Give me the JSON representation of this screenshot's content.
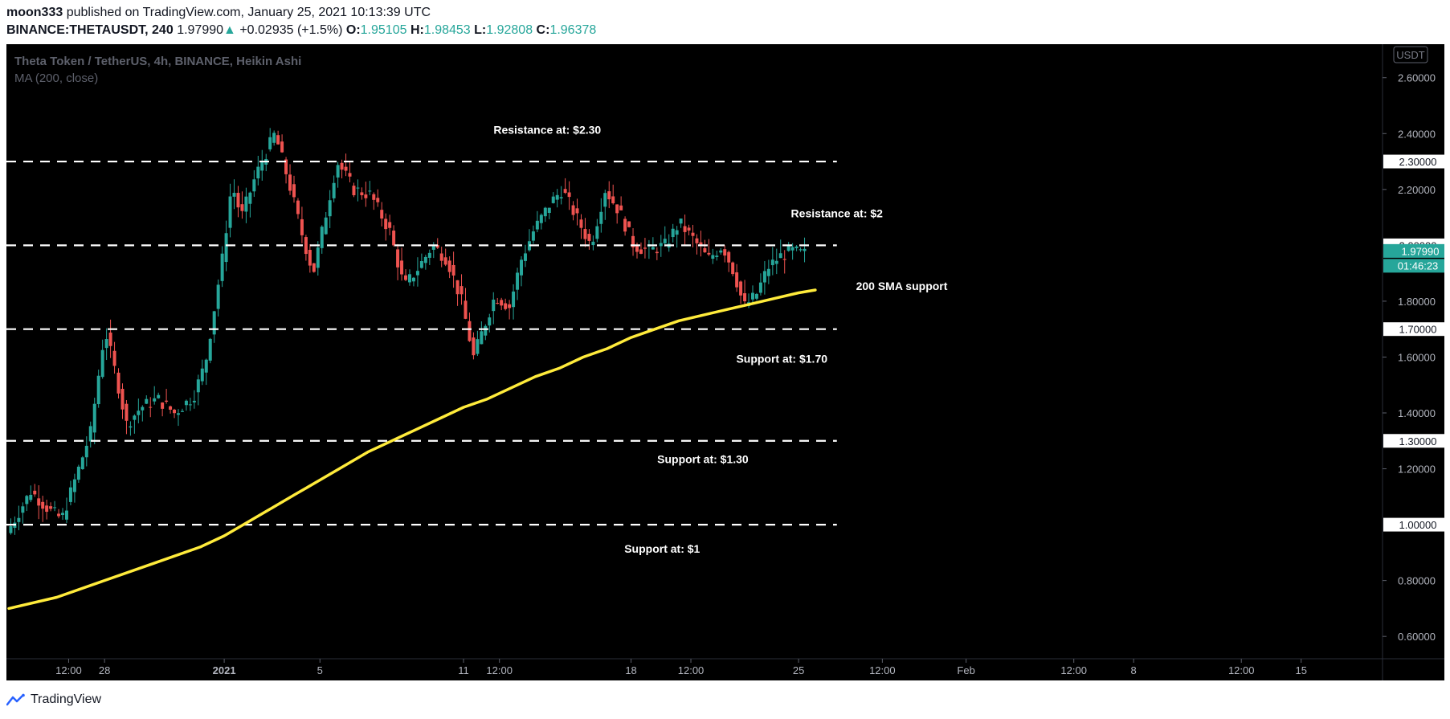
{
  "header": {
    "author": "moon333",
    "published_text": "published on TradingView.com, January 25, 2021 10:13:39 UTC",
    "symbol": "BINANCE:THETAUSDT, 240",
    "price": "1.97990",
    "change_icon": "up-triangle-icon",
    "change": "+0.02935 (+1.5%)",
    "o_label": "O:",
    "o_value": "1.95105",
    "h_label": "H:",
    "h_value": "1.98453",
    "l_label": "L:",
    "l_value": "1.92808",
    "c_label": "C:",
    "c_value": "1.96378"
  },
  "legend": {
    "title": "Theta Token / TetherUS, 4h, BINANCE, Heikin Ashi",
    "indicator": "MA (200, close)"
  },
  "currency": "USDT",
  "current_price_tag": "1.97990",
  "countdown": "01:46:23",
  "footer": {
    "brand": "TradingView",
    "logo_icon": "tradingview-logo-icon"
  },
  "colors": {
    "up": "#26a69a",
    "down": "#ef5350",
    "ma": "#ffeb3b",
    "background": "#000000",
    "level_line": "#ffffff"
  },
  "chart_data": {
    "type": "candlestick",
    "title": "Theta Token / TetherUS, 4h, BINANCE, Heikin Ashi",
    "y_axis": {
      "range": [
        0.52,
        2.72
      ],
      "ticks": [
        "2.60000",
        "2.40000",
        "2.20000",
        "1.80000",
        "1.60000",
        "1.40000",
        "1.20000",
        "0.80000",
        "0.60000"
      ]
    },
    "x_axis": {
      "ticks": [
        {
          "label": "12:00",
          "day": 0.5,
          "bold": false
        },
        {
          "label": "28",
          "day": 2,
          "bold": false
        },
        {
          "label": "2021",
          "day": 7,
          "bold": true
        },
        {
          "label": "5",
          "day": 11,
          "bold": false
        },
        {
          "label": "11",
          "day": 17,
          "bold": false
        },
        {
          "label": "12:00",
          "day": 18.5,
          "bold": false
        },
        {
          "label": "18",
          "day": 24,
          "bold": false
        },
        {
          "label": "12:00",
          "day": 26.5,
          "bold": false
        },
        {
          "label": "25",
          "day": 31,
          "bold": false
        },
        {
          "label": "12:00",
          "day": 34.5,
          "bold": false
        },
        {
          "label": "Feb",
          "day": 38,
          "bold": false
        },
        {
          "label": "12:00",
          "day": 42.5,
          "bold": false
        },
        {
          "label": "8",
          "day": 45,
          "bold": false
        },
        {
          "label": "12:00",
          "day": 49.5,
          "bold": false
        },
        {
          "label": "15",
          "day": 52,
          "bold": false
        }
      ],
      "range_days": [
        -2.1,
        55.4
      ]
    },
    "price_path": [
      [
        -2.0,
        0.97
      ],
      [
        -1.0,
        1.12
      ],
      [
        -0.2,
        1.05
      ],
      [
        0.3,
        1.02
      ],
      [
        1.0,
        1.2
      ],
      [
        1.5,
        1.33
      ],
      [
        2.1,
        1.7
      ],
      [
        2.6,
        1.52
      ],
      [
        3.0,
        1.36
      ],
      [
        3.6,
        1.42
      ],
      [
        4.3,
        1.45
      ],
      [
        5.0,
        1.4
      ],
      [
        5.8,
        1.46
      ],
      [
        6.3,
        1.58
      ],
      [
        7.0,
        1.95
      ],
      [
        7.4,
        2.22
      ],
      [
        7.8,
        2.1
      ],
      [
        8.4,
        2.25
      ],
      [
        9.2,
        2.4
      ],
      [
        9.8,
        2.22
      ],
      [
        10.3,
        2.05
      ],
      [
        10.8,
        1.9
      ],
      [
        11.3,
        2.1
      ],
      [
        11.8,
        2.3
      ],
      [
        12.5,
        2.2
      ],
      [
        13.2,
        2.18
      ],
      [
        14.0,
        2.05
      ],
      [
        14.6,
        1.85
      ],
      [
        15.2,
        1.92
      ],
      [
        15.8,
        2.0
      ],
      [
        16.4,
        1.95
      ],
      [
        17.0,
        1.8
      ],
      [
        17.5,
        1.6
      ],
      [
        17.9,
        1.7
      ],
      [
        18.4,
        1.82
      ],
      [
        19.0,
        1.78
      ],
      [
        19.5,
        1.95
      ],
      [
        20.0,
        2.05
      ],
      [
        20.7,
        2.15
      ],
      [
        21.2,
        2.2
      ],
      [
        21.8,
        2.1
      ],
      [
        22.4,
        2.0
      ],
      [
        23.0,
        2.2
      ],
      [
        23.6,
        2.12
      ],
      [
        24.2,
        2.0
      ],
      [
        24.8,
        1.98
      ],
      [
        25.5,
        2.0
      ],
      [
        26.1,
        2.08
      ],
      [
        26.7,
        2.02
      ],
      [
        27.3,
        1.95
      ],
      [
        27.9,
        2.0
      ],
      [
        28.4,
        1.9
      ],
      [
        28.8,
        1.78
      ],
      [
        29.3,
        1.82
      ],
      [
        29.8,
        1.92
      ],
      [
        30.3,
        1.96
      ],
      [
        30.8,
        1.98
      ],
      [
        31.2,
        1.97
      ]
    ],
    "series": [
      {
        "name": "MA (200, close)",
        "type": "line",
        "points": [
          [
            -2.0,
            0.7
          ],
          [
            0.0,
            0.74
          ],
          [
            2.0,
            0.8
          ],
          [
            4.0,
            0.86
          ],
          [
            6.0,
            0.92
          ],
          [
            7.0,
            0.96
          ],
          [
            8.0,
            1.01
          ],
          [
            9.0,
            1.06
          ],
          [
            10.0,
            1.11
          ],
          [
            11.0,
            1.16
          ],
          [
            12.0,
            1.21
          ],
          [
            13.0,
            1.26
          ],
          [
            14.0,
            1.3
          ],
          [
            15.0,
            1.34
          ],
          [
            16.0,
            1.38
          ],
          [
            17.0,
            1.42
          ],
          [
            18.0,
            1.45
          ],
          [
            19.0,
            1.49
          ],
          [
            20.0,
            1.53
          ],
          [
            21.0,
            1.56
          ],
          [
            22.0,
            1.6
          ],
          [
            23.0,
            1.63
          ],
          [
            24.0,
            1.67
          ],
          [
            25.0,
            1.7
          ],
          [
            26.0,
            1.73
          ],
          [
            27.0,
            1.75
          ],
          [
            28.0,
            1.77
          ],
          [
            29.0,
            1.79
          ],
          [
            30.0,
            1.81
          ],
          [
            31.0,
            1.83
          ],
          [
            31.7,
            1.84
          ]
        ]
      }
    ],
    "levels": [
      {
        "price": 2.3,
        "tag": "2.30000",
        "label": "Resistance at: $2.30",
        "label_day": 20.5,
        "label_price": 2.4
      },
      {
        "price": 2.0,
        "tag": "2.00000",
        "label": "Resistance at: $2",
        "label_day": 32.6,
        "label_price": 2.1
      },
      {
        "price": 1.7,
        "tag": "1.70000",
        "label": "Support at: $1.70",
        "label_day": 30.3,
        "label_price": 1.58
      },
      {
        "price": 1.3,
        "tag": "1.30000",
        "label": "Support at: $1.30",
        "label_day": 27.0,
        "label_price": 1.22
      },
      {
        "price": 1.0,
        "tag": "1.00000",
        "label": "Support at: $1",
        "label_day": 25.3,
        "label_price": 0.9
      }
    ],
    "annotations": [
      {
        "text": "200 SMA support",
        "day": 33.4,
        "price": 1.84
      }
    ]
  }
}
